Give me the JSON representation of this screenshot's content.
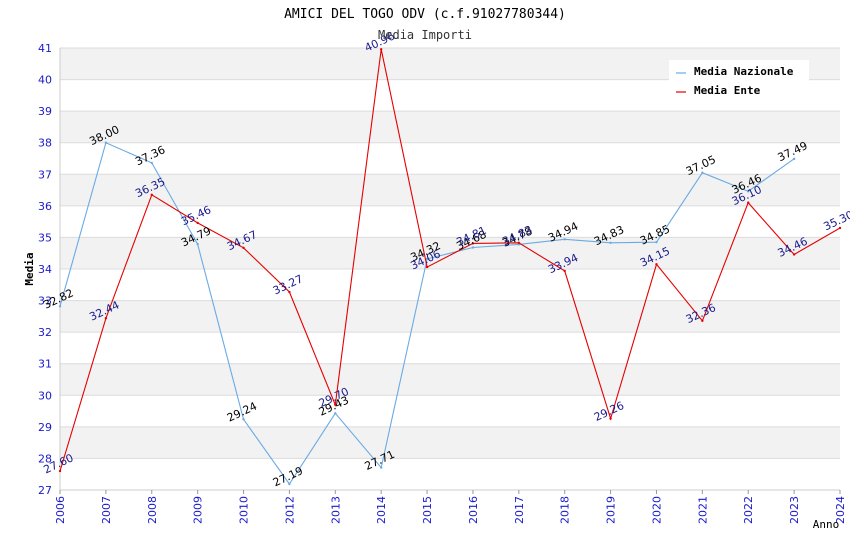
{
  "chart_data": {
    "type": "line",
    "title": "AMICI DEL TOGO ODV (c.f.91027780344)",
    "subtitle": "Media Importi",
    "xlabel": "Anno",
    "ylabel": "Media",
    "ylim": [
      27,
      41
    ],
    "yticks": [
      27,
      28,
      29,
      30,
      31,
      32,
      33,
      34,
      35,
      36,
      37,
      38,
      39,
      40,
      41
    ],
    "categories": [
      "2006",
      "2007",
      "2008",
      "2009",
      "2010",
      "2012",
      "2013",
      "2014",
      "2015",
      "2016",
      "2017",
      "2018",
      "2019",
      "2020",
      "2021",
      "2022",
      "2023",
      "2024"
    ],
    "legend_position": "top-right",
    "grid": true,
    "series": [
      {
        "name": "Media Nazionale",
        "color": "#6aaae4",
        "label_color": "#000000",
        "values": [
          32.82,
          38.0,
          37.36,
          34.79,
          29.24,
          27.19,
          29.43,
          27.71,
          34.32,
          34.68,
          34.78,
          34.94,
          34.83,
          34.85,
          37.05,
          36.46,
          37.49,
          null
        ],
        "labels": [
          "32.82",
          "38.00",
          "37.36",
          "34.79",
          "29.24",
          "27.19",
          "29.43",
          "27.71",
          "34.32",
          "34.68",
          "34.78",
          "34.94",
          "34.83",
          "34.85",
          "37.05",
          "36.46",
          "37.49",
          ""
        ]
      },
      {
        "name": "Media Ente",
        "color": "#e60000",
        "label_color": "#1a1a8c",
        "values": [
          27.6,
          32.44,
          36.35,
          35.46,
          34.67,
          33.27,
          29.7,
          40.96,
          34.06,
          34.81,
          34.83,
          33.94,
          29.26,
          34.15,
          32.36,
          36.1,
          34.46,
          35.3
        ],
        "labels": [
          "27.60",
          "32.44",
          "36.35",
          "35.46",
          "34.67",
          "33.27",
          "29.70",
          "40.96",
          "34.06",
          "34.81",
          "34.83",
          "33.94",
          "29.26",
          "34.15",
          "32.36",
          "36.10",
          "34.46",
          "35.30"
        ]
      }
    ]
  },
  "colors": {
    "axis_text": "#1a1acc",
    "band": "#f2f2f2",
    "grid": "#dcdcdc"
  }
}
